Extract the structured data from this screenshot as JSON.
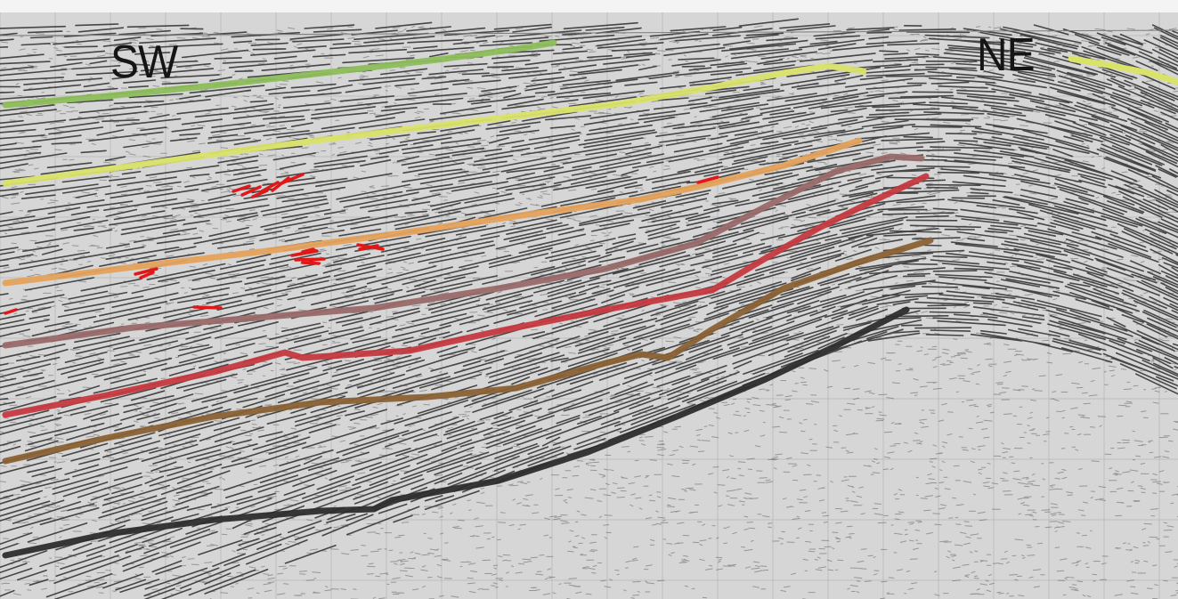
{
  "section": {
    "left_label": "SW",
    "right_label": "NE"
  },
  "horizons": [
    {
      "id": "green",
      "color": "#8dbd5a"
    },
    {
      "id": "yellow",
      "color": "#d9e36a"
    },
    {
      "id": "orange",
      "color": "#e5a25c"
    },
    {
      "id": "mauve",
      "color": "#9a6a6a"
    },
    {
      "id": "red",
      "color": "#c63a40"
    },
    {
      "id": "brown",
      "color": "#8a6234"
    },
    {
      "id": "black",
      "color": "#2d2d2d"
    }
  ],
  "fault_marks_color": "#e01818"
}
